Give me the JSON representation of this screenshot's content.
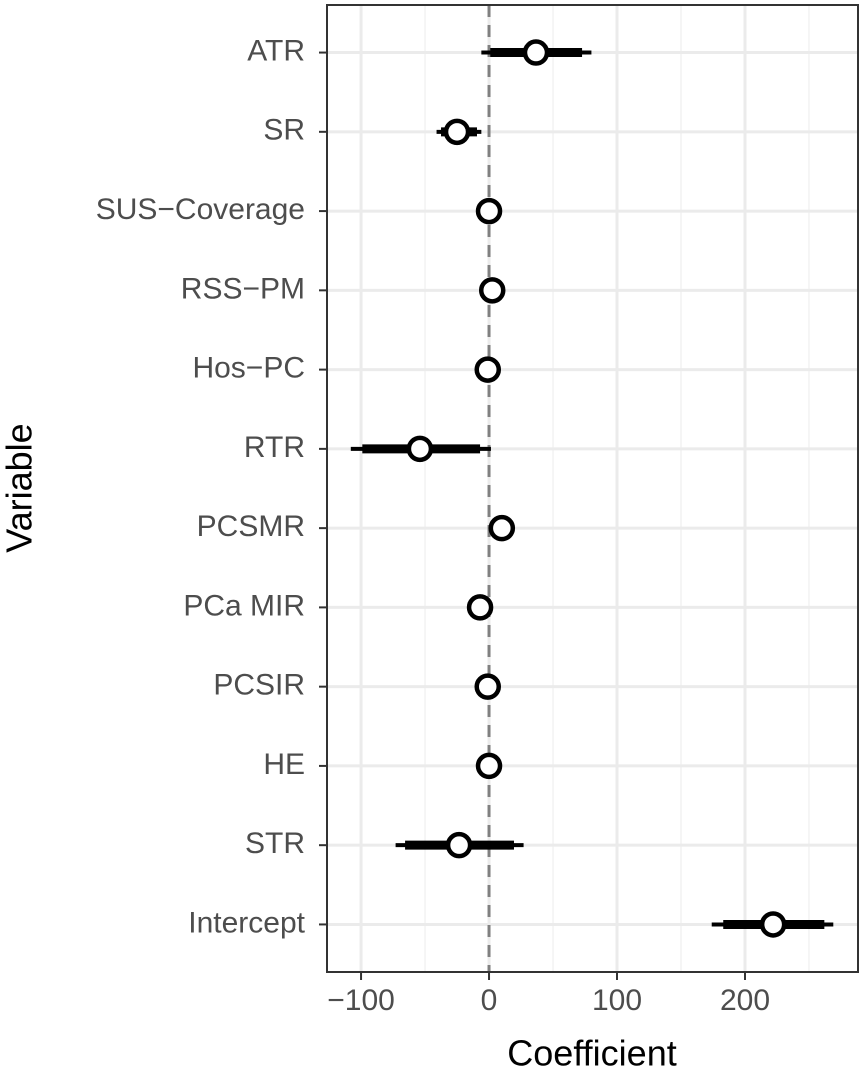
{
  "chart_data": {
    "type": "coefplot",
    "x_label": "Coefficient",
    "y_label": "Variable",
    "categories": [
      "ATR",
      "SR",
      "SUS−Coverage",
      "RSS−PM",
      "Hos−PC",
      "RTR",
      "PCSMR",
      "PCa MIR",
      "PCSIR",
      "HE",
      "STR",
      "Intercept"
    ],
    "values": [
      36.7,
      -25,
      0,
      2.5,
      -1,
      -54,
      10,
      -7,
      -1,
      0,
      -23.4,
      222
    ],
    "inner_low": [
      1,
      -37.5,
      -1,
      1.5,
      -2,
      -99,
      9,
      -8,
      -2,
      -1,
      -65.6,
      183
    ],
    "inner_high": [
      72.7,
      -9.4,
      1,
      3.5,
      0,
      -7,
      11,
      -6,
      0,
      1,
      19.5,
      262
    ],
    "outer_low": [
      -6,
      -41,
      -2,
      0.5,
      -3,
      -108,
      8,
      -9,
      -3,
      -2,
      -73,
      174
    ],
    "outer_high": [
      80,
      -6,
      2,
      4.5,
      1,
      1.5,
      12,
      -5,
      1,
      2,
      27,
      269
    ],
    "color": "#000000",
    "xlim": [
      -126.6,
      288.3
    ],
    "xticks": [
      {
        "value": -100,
        "label": "−100"
      },
      0,
      100,
      200
    ],
    "xminor": [
      -50,
      50,
      150,
      250
    ],
    "refline": 0,
    "grid": true
  }
}
